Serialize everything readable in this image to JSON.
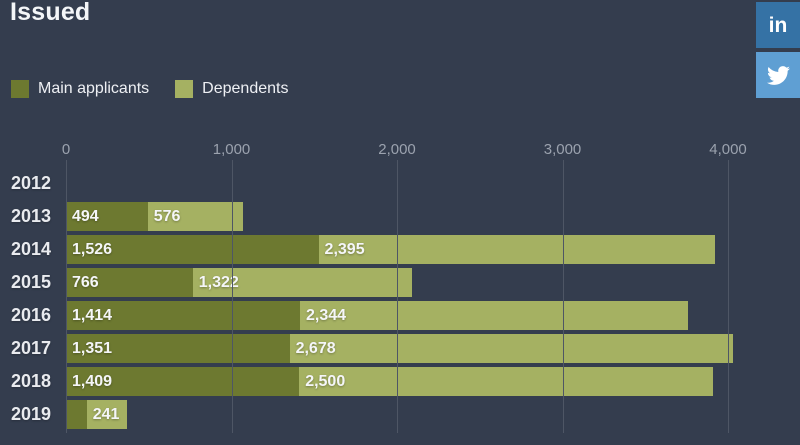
{
  "page": {
    "background": "#343d4e"
  },
  "header": {
    "title": "Issued"
  },
  "social": {
    "linkedin": {
      "label": "in",
      "color": "#3572a5"
    },
    "twitter": {
      "color": "#5f9fd3"
    }
  },
  "legend": [
    {
      "label": "Main applicants",
      "color": "#6d7930"
    },
    {
      "label": "Dependents",
      "color": "#a5b162"
    }
  ],
  "chart_data": {
    "type": "bar",
    "orientation": "horizontal",
    "stacked": true,
    "title": "Issued",
    "xlabel": "",
    "ylabel": "",
    "grid": true,
    "legend_position": "top-left",
    "categories": [
      "2012",
      "2013",
      "2014",
      "2015",
      "2016",
      "2017",
      "2018",
      "2019"
    ],
    "series": [
      {
        "name": "Main applicants",
        "color": "#6d7930",
        "values": [
          0,
          494,
          1526,
          766,
          1414,
          1351,
          1409,
          125
        ],
        "labels": [
          "",
          "494",
          "1,526",
          "766",
          "1,414",
          "1,351",
          "1,409",
          ""
        ]
      },
      {
        "name": "Dependents",
        "color": "#a5b162",
        "values": [
          0,
          576,
          2395,
          1322,
          2344,
          2678,
          2500,
          241
        ],
        "labels": [
          "",
          "576",
          "2,395",
          "1,322",
          "2,344",
          "2,678",
          "2,500",
          "241"
        ]
      }
    ],
    "x_ticks": [
      {
        "value": 0,
        "label": "0"
      },
      {
        "value": 1000,
        "label": "1,000"
      },
      {
        "value": 2000,
        "label": "2,000"
      },
      {
        "value": 3000,
        "label": "3,000"
      },
      {
        "value": 4000,
        "label": "4,000"
      }
    ],
    "xlim": [
      0,
      4435
    ]
  }
}
